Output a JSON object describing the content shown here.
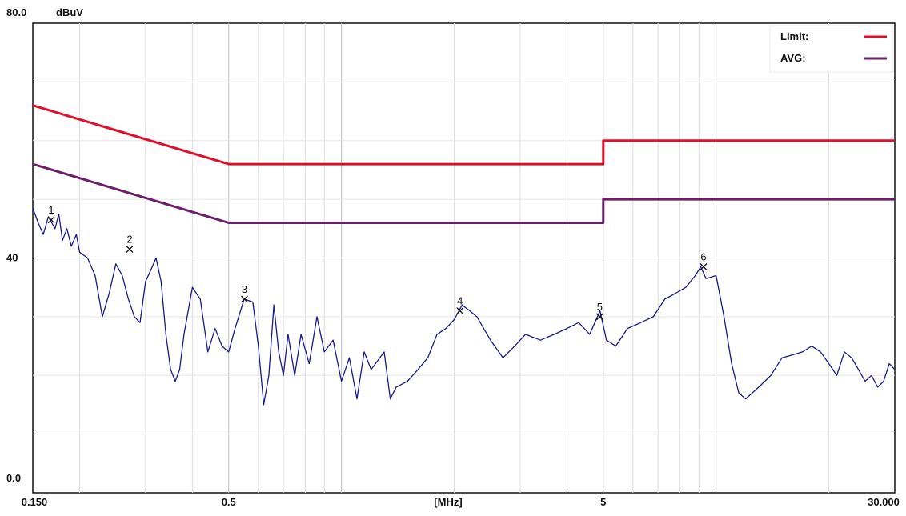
{
  "chart_data": {
    "type": "line",
    "title": "",
    "xlabel": "[MHz]",
    "ylabel": "dBuV",
    "x_scale": "log",
    "xlim": [
      0.15,
      30
    ],
    "ylim": [
      0,
      80
    ],
    "x_tick_labels": [
      {
        "value": 0.15,
        "label": "0.150"
      },
      {
        "value": 0.5,
        "label": "0.5"
      },
      {
        "value": 5,
        "label": "5"
      },
      {
        "value": 30,
        "label": "30.000"
      }
    ],
    "y_tick_labels": [
      {
        "value": 80,
        "label": "80.0"
      },
      {
        "value": 40,
        "label": "40"
      },
      {
        "value": 0,
        "label": "0.0"
      }
    ],
    "x_axis_center_label": "[MHz]",
    "y_unit_label": "dBuV",
    "grid": true,
    "legend_position": "top-right",
    "legend": [
      {
        "label": "Limit:",
        "color": "#e0102a"
      },
      {
        "label": "AVG:",
        "color": "#6a1f6a"
      }
    ],
    "series": [
      {
        "name": "Limit:",
        "color": "#e0102a",
        "points": [
          [
            0.15,
            66
          ],
          [
            0.5,
            56
          ],
          [
            5,
            56
          ],
          [
            5,
            60
          ],
          [
            30,
            60
          ]
        ]
      },
      {
        "name": "AVG:",
        "color": "#6a1f6a",
        "points": [
          [
            0.15,
            56
          ],
          [
            0.5,
            46
          ],
          [
            5,
            46
          ],
          [
            5,
            50
          ],
          [
            30,
            50
          ]
        ]
      },
      {
        "color": "#1a1a8c",
        "points": [
          [
            0.15,
            48.5
          ],
          [
            0.155,
            46
          ],
          [
            0.16,
            44
          ],
          [
            0.165,
            47
          ],
          [
            0.172,
            45
          ],
          [
            0.176,
            47.5
          ],
          [
            0.18,
            43
          ],
          [
            0.185,
            45
          ],
          [
            0.19,
            42
          ],
          [
            0.196,
            44
          ],
          [
            0.2,
            41
          ],
          [
            0.21,
            40
          ],
          [
            0.22,
            37
          ],
          [
            0.23,
            30
          ],
          [
            0.24,
            34
          ],
          [
            0.25,
            39
          ],
          [
            0.26,
            37
          ],
          [
            0.27,
            33
          ],
          [
            0.28,
            30
          ],
          [
            0.29,
            29
          ],
          [
            0.3,
            36
          ],
          [
            0.31,
            38
          ],
          [
            0.32,
            40
          ],
          [
            0.33,
            36
          ],
          [
            0.34,
            27
          ],
          [
            0.35,
            21
          ],
          [
            0.36,
            19
          ],
          [
            0.37,
            21
          ],
          [
            0.38,
            27
          ],
          [
            0.39,
            31
          ],
          [
            0.4,
            35
          ],
          [
            0.42,
            33
          ],
          [
            0.44,
            24
          ],
          [
            0.46,
            28
          ],
          [
            0.48,
            25
          ],
          [
            0.5,
            24
          ],
          [
            0.52,
            28
          ],
          [
            0.55,
            33
          ],
          [
            0.58,
            32.5
          ],
          [
            0.6,
            25
          ],
          [
            0.62,
            15
          ],
          [
            0.64,
            20
          ],
          [
            0.66,
            32
          ],
          [
            0.68,
            24
          ],
          [
            0.7,
            20
          ],
          [
            0.72,
            27
          ],
          [
            0.75,
            20
          ],
          [
            0.78,
            27
          ],
          [
            0.82,
            22
          ],
          [
            0.86,
            30
          ],
          [
            0.9,
            24
          ],
          [
            0.95,
            26
          ],
          [
            1.0,
            19
          ],
          [
            1.05,
            23
          ],
          [
            1.1,
            16
          ],
          [
            1.15,
            24
          ],
          [
            1.2,
            21
          ],
          [
            1.3,
            24
          ],
          [
            1.35,
            16
          ],
          [
            1.4,
            18
          ],
          [
            1.5,
            19
          ],
          [
            1.6,
            21
          ],
          [
            1.7,
            23
          ],
          [
            1.8,
            27
          ],
          [
            1.9,
            28
          ],
          [
            2.0,
            29.5
          ],
          [
            2.1,
            32
          ],
          [
            2.2,
            31
          ],
          [
            2.3,
            30
          ],
          [
            2.5,
            26
          ],
          [
            2.7,
            23
          ],
          [
            2.9,
            25
          ],
          [
            3.1,
            27
          ],
          [
            3.4,
            26
          ],
          [
            3.7,
            27
          ],
          [
            4.0,
            28
          ],
          [
            4.3,
            29
          ],
          [
            4.6,
            27
          ],
          [
            4.9,
            31
          ],
          [
            5.1,
            26
          ],
          [
            5.4,
            25
          ],
          [
            5.8,
            28
          ],
          [
            6.3,
            29
          ],
          [
            6.8,
            30
          ],
          [
            7.3,
            33
          ],
          [
            7.8,
            34
          ],
          [
            8.3,
            35
          ],
          [
            8.8,
            37
          ],
          [
            9.1,
            38.5
          ],
          [
            9.4,
            36.5
          ],
          [
            10,
            37
          ],
          [
            10.5,
            30
          ],
          [
            11,
            22
          ],
          [
            11.5,
            17
          ],
          [
            12,
            16
          ],
          [
            13,
            18
          ],
          [
            14,
            20
          ],
          [
            15,
            23
          ],
          [
            16,
            23.5
          ],
          [
            17,
            24
          ],
          [
            18,
            25
          ],
          [
            19,
            24
          ],
          [
            20,
            22
          ],
          [
            21,
            20
          ],
          [
            22,
            24
          ],
          [
            23,
            23
          ],
          [
            24,
            21
          ],
          [
            25,
            19
          ],
          [
            26,
            20
          ],
          [
            27,
            18
          ],
          [
            28,
            19
          ],
          [
            29,
            22
          ],
          [
            30,
            21
          ]
        ]
      }
    ],
    "markers": [
      {
        "label": "1",
        "x": 0.168,
        "y": 46.5
      },
      {
        "label": "2",
        "x": 0.272,
        "y": 41.5
      },
      {
        "label": "3",
        "x": 0.551,
        "y": 33.0
      },
      {
        "label": "4",
        "x": 2.072,
        "y": 31.0
      },
      {
        "label": "5",
        "x": 4.892,
        "y": 30.0
      },
      {
        "label": "6",
        "x": 9.256,
        "y": 38.5
      }
    ]
  }
}
